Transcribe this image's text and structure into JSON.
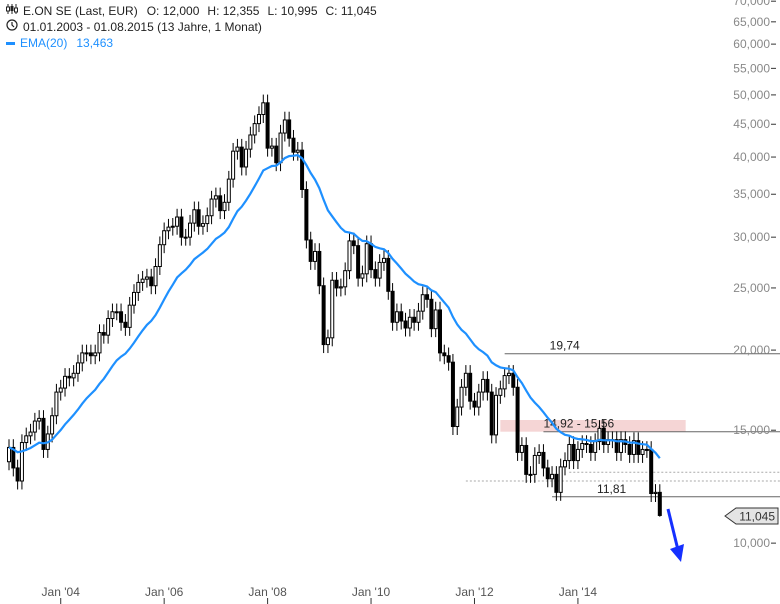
{
  "legend": {
    "symbol_icon": "candlestick-icon",
    "title": "E.ON SE (Last, EUR)",
    "open": "O: 12,000",
    "high": "H: 12,355",
    "low": "L: 10,995",
    "close": "C: 11,045",
    "period_icon": "clock-icon",
    "period": "01.01.2003 - 01.08.2015 (13 Jahre, 1 Monat)",
    "ema_label": "EMA(20)",
    "ema_value": "13,463"
  },
  "colors": {
    "ema": "#1e90ff",
    "zone": "#f5d5d5",
    "arrow": "#1530ff",
    "level": "#666666"
  },
  "chart_data": {
    "type": "candlestick",
    "scale": "log",
    "interval": "monthly",
    "start": "2003-01",
    "end": "2015-08",
    "ylim": [
      9,
      70
    ],
    "yticks": [
      10,
      15,
      20,
      25,
      30,
      35,
      40,
      45,
      50,
      55,
      60,
      65,
      70
    ],
    "ytick_labels": [
      "10,000",
      "15,000",
      "20,000",
      "25,000",
      "30,000",
      "35,000",
      "40,000",
      "45,000",
      "50,000",
      "55,000",
      "60,000",
      "65,000",
      "70,000"
    ],
    "xticks": [
      {
        "date": "2004-01",
        "label": "Jan '04"
      },
      {
        "date": "2006-01",
        "label": "Jan '06"
      },
      {
        "date": "2008-01",
        "label": "Jan '08"
      },
      {
        "date": "2010-01",
        "label": "Jan '10"
      },
      {
        "date": "2012-01",
        "label": "Jan '12"
      },
      {
        "date": "2014-01",
        "label": "Jan '14"
      }
    ],
    "closes": [
      14.1,
      13.1,
      12.5,
      14.35,
      14.7,
      14.9,
      15.5,
      15.65,
      14.0,
      14.8,
      15.8,
      17.2,
      17.45,
      18.2,
      18.1,
      18.4,
      19.1,
      19.8,
      19.8,
      19.6,
      19.8,
      21.3,
      21.1,
      22.4,
      22.95,
      22.95,
      22.1,
      21.7,
      23.5,
      24.6,
      25.5,
      25.8,
      26.0,
      25.2,
      27.0,
      29.2,
      30.7,
      31.1,
      31.2,
      32.25,
      30.0,
      30.0,
      31.55,
      33.1,
      31.2,
      31.5,
      32.4,
      34.4,
      34.8,
      33.0,
      34.0,
      36.95,
      40.85,
      41.45,
      38.6,
      41.15,
      43.3,
      45.1,
      46.6,
      48.6,
      41.3,
      41.6,
      39.2,
      43.6,
      45.7,
      42.8,
      40.7,
      41.0,
      35.6,
      29.7,
      27.5,
      28.5,
      25.2,
      20.4,
      20.9,
      25.7,
      25.0,
      25.1,
      26.6,
      29.6,
      29.1,
      25.9,
      26.3,
      29.3,
      26.7,
      25.9,
      27.4,
      27.8,
      24.7,
      22.1,
      22.95,
      22.2,
      21.65,
      22.5,
      22.1,
      23.0,
      24.4,
      24.0,
      21.6,
      23.1,
      19.8,
      19.6,
      19.15,
      15.2,
      16.3,
      17.5,
      18.4,
      16.65,
      16.3,
      17.2,
      18.0,
      17.2,
      14.75,
      17.0,
      17.4,
      18.25,
      18.4,
      17.5,
      13.85,
      14.2,
      12.8,
      12.8,
      13.7,
      13.85,
      13.1,
      12.6,
      12.8,
      12.0,
      13.15,
      13.45,
      14.25,
      13.45,
      14.0,
      14.3,
      14.25,
      13.85,
      14.4,
      15.1,
      14.25,
      14.5,
      14.5,
      13.85,
      14.5,
      14.25,
      13.75,
      14.45,
      13.75,
      14.0,
      14.0,
      11.95,
      12.0,
      11.045
    ],
    "last_candle": {
      "open": 12.0,
      "high": 12.355,
      "low": 10.995,
      "close": 11.045
    },
    "ema_period": 20,
    "levels": [
      {
        "value": 19.74,
        "label": "19,74",
        "from": "2012-08"
      },
      {
        "value": 14.92,
        "label": "14,92 - 15,56",
        "from": "2013-05",
        "zone_top": 15.56,
        "zone_from": "2012-07",
        "zone_to": "2016-02"
      },
      {
        "value": 11.81,
        "label": "11,81",
        "from": "2013-07"
      }
    ],
    "dotted_levels": [
      {
        "value": 12.5,
        "from": "2011-11"
      },
      {
        "value": 12.9,
        "from": "2013-11"
      }
    ],
    "current_price_label": "11,045",
    "annotation": "down-arrow"
  }
}
